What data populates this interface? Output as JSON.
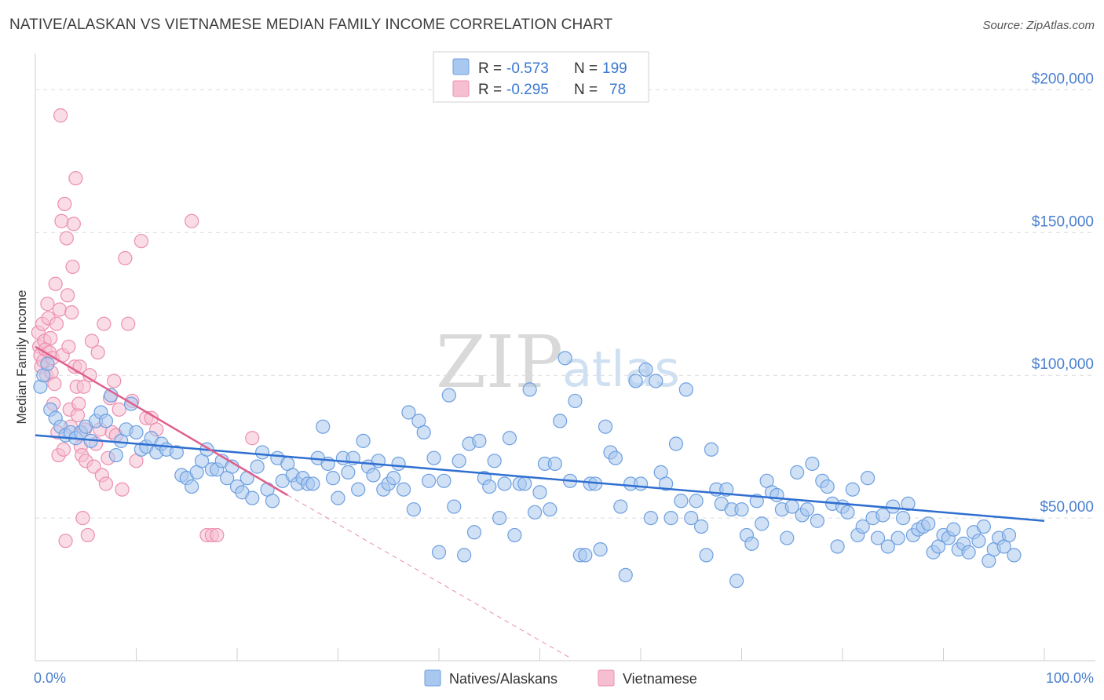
{
  "title": "NATIVE/ALASKAN VS VIETNAMESE MEDIAN FAMILY INCOME CORRELATION CHART",
  "source": "Source: ZipAtlas.com",
  "watermark": {
    "part1": "ZIP",
    "part2": "atlas"
  },
  "colors": {
    "blue_fill": "#a9c8ef",
    "blue_stroke": "#6d9fe0",
    "blue_line": "#2f6fd0",
    "pink_fill": "#f5bfd1",
    "pink_stroke": "#ec8fb0",
    "pink_line": "#e0608c",
    "grid": "#dcdcdc",
    "axis_text": "#4a7fcf"
  },
  "legend": {
    "row1": {
      "r_label": "R =",
      "r_value": "-0.573",
      "n_label": "N =",
      "n_value": "199"
    },
    "row2": {
      "r_label": "R =",
      "r_value": "-0.295",
      "n_label": "N =",
      "n_value": "78"
    }
  },
  "chart_data": {
    "type": "scatter",
    "title": "NATIVE/ALASKAN VS VIETNAMESE MEDIAN FAMILY INCOME CORRELATION CHART",
    "xlabel": "",
    "ylabel": "Median Family Income",
    "xlim": [
      0,
      100
    ],
    "ylim": [
      0,
      210000
    ],
    "x_tick_labels": [
      "0.0%",
      "100.0%"
    ],
    "y_ticks": [
      50000,
      100000,
      150000,
      200000
    ],
    "y_tick_labels": [
      "$50,000",
      "$100,000",
      "$150,000",
      "$200,000"
    ],
    "grid": true,
    "legend_position": "bottom-center",
    "series": [
      {
        "name": "Natives/Alaskans",
        "color": "blue",
        "R": -0.573,
        "N": 199,
        "trendline": {
          "x": [
            0,
            100
          ],
          "y": [
            79000,
            49000
          ]
        },
        "points": [
          [
            0.5,
            96000
          ],
          [
            0.8,
            100000
          ],
          [
            1.2,
            104000
          ],
          [
            1.5,
            88000
          ],
          [
            2,
            85000
          ],
          [
            2.5,
            82000
          ],
          [
            3,
            79000
          ],
          [
            3.5,
            80000
          ],
          [
            4,
            78000
          ],
          [
            4.5,
            80000
          ],
          [
            5,
            82000
          ],
          [
            5.5,
            77000
          ],
          [
            6,
            84000
          ],
          [
            6.5,
            87000
          ],
          [
            7,
            84000
          ],
          [
            7.5,
            93000
          ],
          [
            8,
            72000
          ],
          [
            8.5,
            77000
          ],
          [
            9,
            81000
          ],
          [
            9.5,
            90000
          ],
          [
            10,
            80000
          ],
          [
            10.5,
            74000
          ],
          [
            11,
            75000
          ],
          [
            11.5,
            78000
          ],
          [
            12,
            73000
          ],
          [
            12.5,
            76000
          ],
          [
            13,
            74000
          ],
          [
            14,
            73000
          ],
          [
            14.5,
            65000
          ],
          [
            15,
            64000
          ],
          [
            15.5,
            61000
          ],
          [
            16,
            66000
          ],
          [
            16.5,
            70000
          ],
          [
            17,
            74000
          ],
          [
            17.5,
            67000
          ],
          [
            18,
            67000
          ],
          [
            18.5,
            70000
          ],
          [
            19,
            64000
          ],
          [
            19.5,
            68000
          ],
          [
            20,
            61000
          ],
          [
            20.5,
            59000
          ],
          [
            21,
            64000
          ],
          [
            21.5,
            57000
          ],
          [
            22,
            68000
          ],
          [
            22.5,
            73000
          ],
          [
            23,
            60000
          ],
          [
            23.5,
            56000
          ],
          [
            24,
            71000
          ],
          [
            24.5,
            63000
          ],
          [
            25,
            69000
          ],
          [
            25.5,
            65000
          ],
          [
            26,
            62000
          ],
          [
            26.5,
            64000
          ],
          [
            27,
            62000
          ],
          [
            27.5,
            62000
          ],
          [
            28,
            71000
          ],
          [
            28.5,
            82000
          ],
          [
            29,
            69000
          ],
          [
            29.5,
            64000
          ],
          [
            30,
            57000
          ],
          [
            30.5,
            71000
          ],
          [
            31,
            66000
          ],
          [
            31.5,
            71000
          ],
          [
            32,
            60000
          ],
          [
            32.5,
            77000
          ],
          [
            33,
            68000
          ],
          [
            33.5,
            65000
          ],
          [
            34,
            70000
          ],
          [
            34.5,
            60000
          ],
          [
            35,
            62000
          ],
          [
            35.5,
            64000
          ],
          [
            36,
            69000
          ],
          [
            36.5,
            60000
          ],
          [
            37,
            87000
          ],
          [
            37.5,
            53000
          ],
          [
            38,
            84000
          ],
          [
            38.5,
            80000
          ],
          [
            39,
            63000
          ],
          [
            39.5,
            71000
          ],
          [
            40,
            38000
          ],
          [
            40.5,
            63000
          ],
          [
            41,
            93000
          ],
          [
            41.5,
            54000
          ],
          [
            42,
            70000
          ],
          [
            42.5,
            37000
          ],
          [
            43,
            76000
          ],
          [
            43.5,
            45000
          ],
          [
            44,
            77000
          ],
          [
            44.5,
            64000
          ],
          [
            45,
            61000
          ],
          [
            45.5,
            70000
          ],
          [
            46,
            50000
          ],
          [
            46.5,
            62000
          ],
          [
            47,
            78000
          ],
          [
            47.5,
            44000
          ],
          [
            48,
            62000
          ],
          [
            48.5,
            62000
          ],
          [
            49,
            95000
          ],
          [
            49.5,
            52000
          ],
          [
            50,
            59000
          ],
          [
            50.5,
            69000
          ],
          [
            51,
            53000
          ],
          [
            51.5,
            69000
          ],
          [
            52,
            84000
          ],
          [
            52.5,
            106000
          ],
          [
            53,
            63000
          ],
          [
            53.5,
            91000
          ],
          [
            54,
            37000
          ],
          [
            54.5,
            37000
          ],
          [
            55,
            62000
          ],
          [
            55.5,
            62000
          ],
          [
            56,
            39000
          ],
          [
            56.5,
            82000
          ],
          [
            57,
            73000
          ],
          [
            57.5,
            71000
          ],
          [
            58,
            54000
          ],
          [
            58.5,
            30000
          ],
          [
            59,
            62000
          ],
          [
            59.5,
            98000
          ],
          [
            60,
            62000
          ],
          [
            60.5,
            102000
          ],
          [
            61,
            50000
          ],
          [
            61.5,
            98000
          ],
          [
            62,
            66000
          ],
          [
            62.5,
            62000
          ],
          [
            63,
            50000
          ],
          [
            63.5,
            76000
          ],
          [
            64,
            56000
          ],
          [
            64.5,
            95000
          ],
          [
            65,
            50000
          ],
          [
            65.5,
            56000
          ],
          [
            66,
            47000
          ],
          [
            66.5,
            37000
          ],
          [
            67,
            74000
          ],
          [
            67.5,
            60000
          ],
          [
            68,
            55000
          ],
          [
            68.5,
            60000
          ],
          [
            69,
            53000
          ],
          [
            69.5,
            28000
          ],
          [
            70,
            53000
          ],
          [
            70.5,
            44000
          ],
          [
            71,
            41000
          ],
          [
            71.5,
            56000
          ],
          [
            72,
            48000
          ],
          [
            72.5,
            63000
          ],
          [
            73,
            59000
          ],
          [
            73.5,
            58000
          ],
          [
            74,
            53000
          ],
          [
            74.5,
            43000
          ],
          [
            75,
            54000
          ],
          [
            75.5,
            66000
          ],
          [
            76,
            51000
          ],
          [
            76.5,
            53000
          ],
          [
            77,
            69000
          ],
          [
            77.5,
            49000
          ],
          [
            78,
            63000
          ],
          [
            78.5,
            61000
          ],
          [
            79,
            55000
          ],
          [
            79.5,
            40000
          ],
          [
            80,
            54000
          ],
          [
            80.5,
            52000
          ],
          [
            81,
            60000
          ],
          [
            81.5,
            44000
          ],
          [
            82,
            47000
          ],
          [
            82.5,
            64000
          ],
          [
            83,
            50000
          ],
          [
            83.5,
            43000
          ],
          [
            84,
            51000
          ],
          [
            84.5,
            40000
          ],
          [
            85,
            54000
          ],
          [
            85.5,
            43000
          ],
          [
            86,
            50000
          ],
          [
            86.5,
            55000
          ],
          [
            87,
            44000
          ],
          [
            87.5,
            46000
          ],
          [
            88,
            47000
          ],
          [
            88.5,
            48000
          ],
          [
            89,
            38000
          ],
          [
            89.5,
            40000
          ],
          [
            90,
            44000
          ],
          [
            90.5,
            43000
          ],
          [
            91,
            46000
          ],
          [
            91.5,
            39000
          ],
          [
            92,
            41000
          ],
          [
            92.5,
            38000
          ],
          [
            93,
            45000
          ],
          [
            93.5,
            42000
          ],
          [
            94,
            47000
          ],
          [
            94.5,
            35000
          ],
          [
            95,
            39000
          ],
          [
            95.5,
            43000
          ],
          [
            96,
            40000
          ],
          [
            96.5,
            44000
          ],
          [
            97,
            37000
          ]
        ]
      },
      {
        "name": "Vietnamese",
        "color": "pink",
        "R": -0.295,
        "N": 78,
        "trendline": {
          "x": [
            0,
            25
          ],
          "y": [
            110000,
            58000
          ]
        },
        "trendline_dashed_extension": {
          "x": [
            25,
            53
          ],
          "y": [
            58000,
            1000
          ]
        },
        "points": [
          [
            0.3,
            115000
          ],
          [
            0.4,
            110000
          ],
          [
            0.5,
            107000
          ],
          [
            0.6,
            103000
          ],
          [
            0.7,
            118000
          ],
          [
            0.8,
            105000
          ],
          [
            0.9,
            112000
          ],
          [
            1,
            109000
          ],
          [
            1.1,
            100000
          ],
          [
            1.2,
            125000
          ],
          [
            1.3,
            120000
          ],
          [
            1.4,
            108000
          ],
          [
            1.5,
            113000
          ],
          [
            1.6,
            101000
          ],
          [
            1.7,
            106000
          ],
          [
            1.8,
            90000
          ],
          [
            1.9,
            97000
          ],
          [
            2,
            132000
          ],
          [
            2.1,
            118000
          ],
          [
            2.2,
            80000
          ],
          [
            2.3,
            72000
          ],
          [
            2.4,
            123000
          ],
          [
            2.5,
            191000
          ],
          [
            2.6,
            154000
          ],
          [
            2.7,
            107000
          ],
          [
            2.8,
            74000
          ],
          [
            2.9,
            160000
          ],
          [
            3,
            42000
          ],
          [
            3.1,
            148000
          ],
          [
            3.2,
            128000
          ],
          [
            3.3,
            110000
          ],
          [
            3.4,
            88000
          ],
          [
            3.5,
            82000
          ],
          [
            3.6,
            122000
          ],
          [
            3.7,
            138000
          ],
          [
            3.8,
            153000
          ],
          [
            3.9,
            103000
          ],
          [
            4,
            169000
          ],
          [
            4.1,
            96000
          ],
          [
            4.2,
            86000
          ],
          [
            4.3,
            90000
          ],
          [
            4.4,
            103000
          ],
          [
            4.5,
            75000
          ],
          [
            4.6,
            72000
          ],
          [
            4.7,
            50000
          ],
          [
            4.8,
            96000
          ],
          [
            4.9,
            81000
          ],
          [
            5,
            70000
          ],
          [
            5.2,
            44000
          ],
          [
            5.4,
            100000
          ],
          [
            5.6,
            112000
          ],
          [
            5.8,
            68000
          ],
          [
            6,
            76000
          ],
          [
            6.2,
            108000
          ],
          [
            6.4,
            81000
          ],
          [
            6.6,
            65000
          ],
          [
            6.8,
            118000
          ],
          [
            7,
            62000
          ],
          [
            7.2,
            71000
          ],
          [
            7.4,
            92000
          ],
          [
            7.6,
            80000
          ],
          [
            7.8,
            98000
          ],
          [
            8,
            79000
          ],
          [
            8.3,
            88000
          ],
          [
            8.6,
            60000
          ],
          [
            8.9,
            141000
          ],
          [
            9.2,
            118000
          ],
          [
            9.6,
            91000
          ],
          [
            10,
            70000
          ],
          [
            10.5,
            147000
          ],
          [
            11,
            85000
          ],
          [
            11.5,
            85000
          ],
          [
            12,
            81000
          ],
          [
            15.5,
            154000
          ],
          [
            17,
            44000
          ],
          [
            17.5,
            44000
          ],
          [
            18,
            44000
          ],
          [
            21.5,
            78000
          ]
        ]
      }
    ]
  }
}
